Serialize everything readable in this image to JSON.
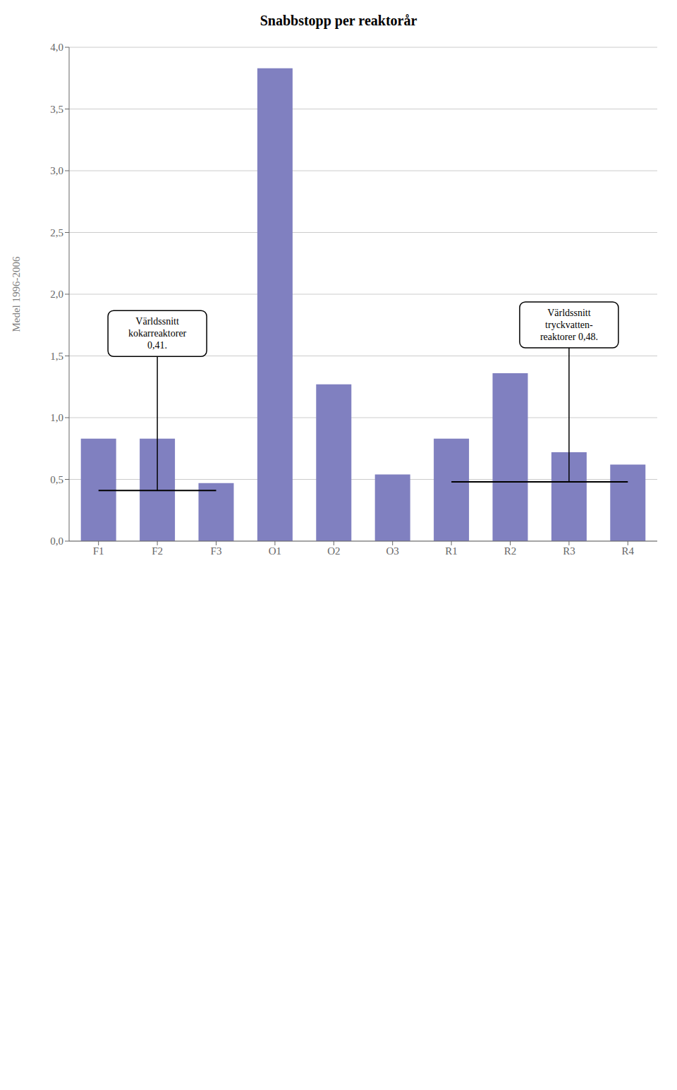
{
  "chart_data": {
    "type": "bar",
    "title": "Snabbstopp per reaktorår",
    "y_label": "Medel 1996-2006",
    "categories": [
      "F1",
      "F2",
      "F3",
      "O1",
      "O2",
      "O3",
      "R1",
      "R2",
      "R3",
      "R4"
    ],
    "values": [
      0.83,
      0.83,
      0.47,
      3.83,
      1.27,
      0.54,
      0.83,
      1.36,
      0.72,
      0.62
    ],
    "color": "#8080C0",
    "ylim": [
      0.0,
      4.0
    ],
    "yticks": [
      {
        "value": 0.0,
        "label": "0,0"
      },
      {
        "value": 0.5,
        "label": "0,5"
      },
      {
        "value": 1.0,
        "label": "1,0"
      },
      {
        "value": 1.5,
        "label": "1,5"
      },
      {
        "value": 2.0,
        "label": "2,0"
      },
      {
        "value": 2.5,
        "label": "2,5"
      },
      {
        "value": 3.0,
        "label": "3,0"
      },
      {
        "value": 3.5,
        "label": "3,5"
      },
      {
        "value": 4.0,
        "label": "4,0"
      }
    ],
    "grid": true,
    "annotations": [
      {
        "text": "Världssnitt\nkokarreaktorer\n0,41.",
        "value": 0.41,
        "from": "F1",
        "to": "F3"
      },
      {
        "text": "Världssnitt\ntryckvatten-\nreaktorer 0,48.",
        "value": 0.48,
        "from": "R1",
        "to": "R4"
      }
    ]
  }
}
